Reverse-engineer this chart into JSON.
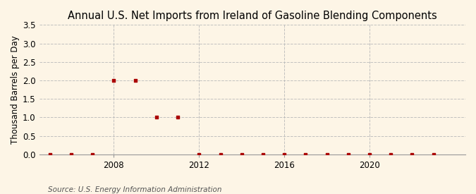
{
  "title": "Annual U.S. Net Imports from Ireland of Gasoline Blending Components",
  "ylabel": "Thousand Barrels per Day",
  "source": "Source: U.S. Energy Information Administration",
  "background_color": "#fdf5e6",
  "years": [
    2005,
    2006,
    2007,
    2008,
    2009,
    2010,
    2011,
    2012,
    2013,
    2014,
    2015,
    2016,
    2017,
    2018,
    2019,
    2020,
    2021,
    2022,
    2023
  ],
  "values": [
    0,
    0,
    0,
    2,
    2,
    1,
    1,
    0,
    0,
    0,
    0,
    0,
    0,
    0,
    0,
    0,
    0,
    0,
    0
  ],
  "marker_color": "#aa0000",
  "ylim": [
    0,
    3.5
  ],
  "yticks": [
    0.0,
    0.5,
    1.0,
    1.5,
    2.0,
    2.5,
    3.0,
    3.5
  ],
  "xlim": [
    2004.5,
    2024.5
  ],
  "xticks": [
    2008,
    2012,
    2016,
    2020
  ],
  "grid_color": "#bbbbbb",
  "title_fontsize": 10.5,
  "label_fontsize": 8.5,
  "tick_fontsize": 8.5,
  "source_fontsize": 7.5
}
